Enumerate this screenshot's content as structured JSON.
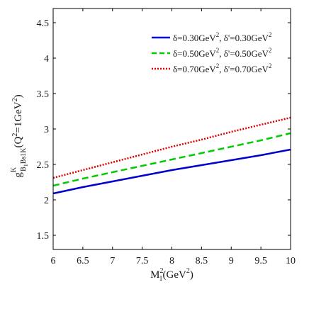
{
  "chart_data": {
    "type": "line",
    "xlabel": {
      "main": "M",
      "sup": "2",
      "sub": "1",
      "rest": "(GeV",
      "rest_sup": "2",
      "close": ")"
    },
    "ylabel": {
      "g": "g",
      "sup": "K",
      "sub_b": "B",
      "sub_1": "1",
      "sub_rest": "Bs1K",
      "args": "(Q",
      "args_sup": "2",
      "args_mid": "=1GeV",
      "args_sup2": "2",
      "args_close": ")"
    },
    "xlim": [
      6,
      10
    ],
    "ylim": [
      1.3,
      4.7
    ],
    "x_ticks": [
      6,
      6.5,
      7,
      7.5,
      8,
      8.5,
      9,
      9.5,
      10
    ],
    "x_tick_labels": [
      "6",
      "6.5",
      "7",
      "7.5",
      "8",
      "8.5",
      "9",
      "9.5",
      "10"
    ],
    "y_ticks": [
      1.5,
      2,
      2.5,
      3,
      3.5,
      4,
      4.5
    ],
    "y_tick_labels": [
      "1.5",
      "2",
      "2.5",
      "3",
      "3.5",
      "4",
      "4.5"
    ],
    "x": [
      6,
      6.5,
      7,
      7.5,
      8,
      8.5,
      9,
      9.5,
      10
    ],
    "series": [
      {
        "legend_a": "δ=0.30GeV",
        "legend_a_sup": "2",
        "legend_b": ", δ'=0.30GeV",
        "legend_b_sup": "2",
        "color": "#0000cc",
        "dash": "solid",
        "values": [
          2.09,
          2.18,
          2.26,
          2.34,
          2.42,
          2.49,
          2.56,
          2.63,
          2.71
        ]
      },
      {
        "legend_a": "δ=0.50GeV",
        "legend_a_sup": "2",
        "legend_b": ", δ'=0.50GeV",
        "legend_b_sup": "2",
        "color": "#00cc00",
        "dash": "dashed",
        "values": [
          2.2,
          2.3,
          2.39,
          2.48,
          2.57,
          2.66,
          2.75,
          2.84,
          2.94
        ]
      },
      {
        "legend_a": "δ=0.70GeV",
        "legend_a_sup": "2",
        "legend_b": ", δ'=0.70GeV",
        "legend_b_sup": "2",
        "color": "#dd0000",
        "dash": "dotted",
        "values": [
          2.31,
          2.42,
          2.53,
          2.64,
          2.75,
          2.85,
          2.96,
          3.06,
          3.16
        ]
      }
    ],
    "legend_position": "top-right",
    "grid": false
  }
}
